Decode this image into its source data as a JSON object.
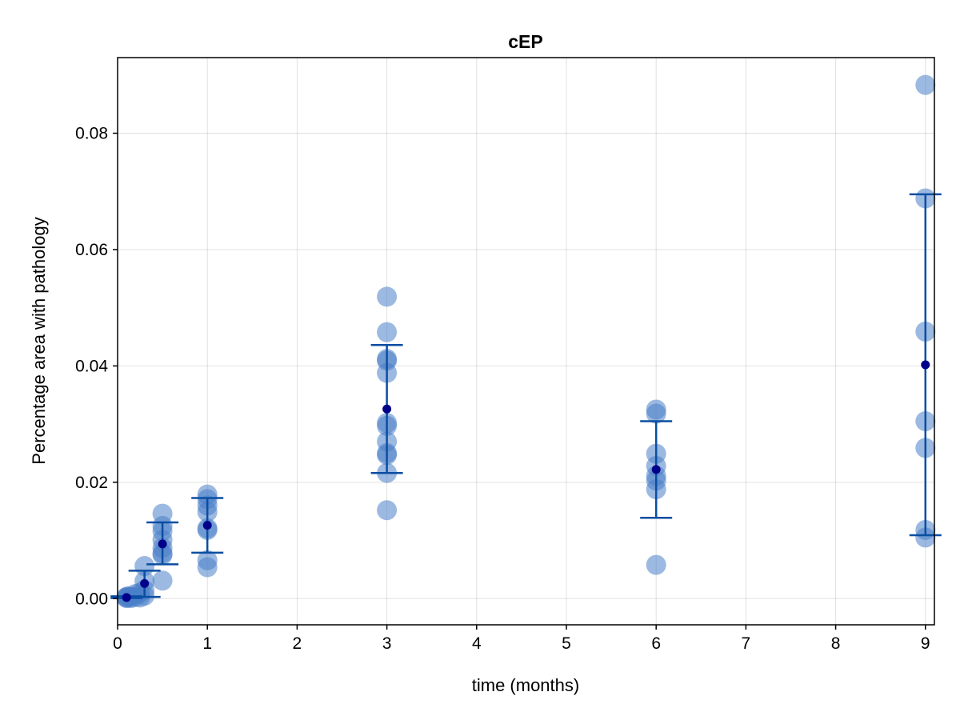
{
  "chart_data": {
    "type": "scatter",
    "title": "cEP",
    "xlabel": "time (months)",
    "ylabel": "Percentage area with pathology",
    "xlim": [
      0,
      9.1
    ],
    "ylim": [
      -0.0045,
      0.093
    ],
    "xticks": [
      0,
      1,
      2,
      3,
      4,
      5,
      6,
      7,
      8,
      9
    ],
    "xtick_labels": [
      "0",
      "1",
      "2",
      "3",
      "4",
      "5",
      "6",
      "7",
      "8",
      "9"
    ],
    "yticks": [
      0.0,
      0.02,
      0.04,
      0.06,
      0.08
    ],
    "ytick_labels": [
      "0.00",
      "0.02",
      "0.04",
      "0.06",
      "0.08"
    ],
    "grid": true,
    "colors": {
      "points": "#4a7fc9",
      "mean": "#00008b",
      "errorbar": "#0b4ea2"
    },
    "points": [
      {
        "x": 0.1,
        "y": 0.0002
      },
      {
        "x": 0.1,
        "y": 0.0001
      },
      {
        "x": 0.1,
        "y": 0.0003
      },
      {
        "x": 0.12,
        "y": 0.0004
      },
      {
        "x": 0.15,
        "y": 0.0001
      },
      {
        "x": 0.15,
        "y": 0.0003
      },
      {
        "x": 0.2,
        "y": 0.0008
      },
      {
        "x": 0.2,
        "y": 0.0003
      },
      {
        "x": 0.25,
        "y": 0.0002
      },
      {
        "x": 0.3,
        "y": 0.0056
      },
      {
        "x": 0.3,
        "y": 0.003
      },
      {
        "x": 0.3,
        "y": 0.0015
      },
      {
        "x": 0.3,
        "y": 0.0005
      },
      {
        "x": 0.25,
        "y": 0.001
      },
      {
        "x": 0.5,
        "y": 0.0146
      },
      {
        "x": 0.5,
        "y": 0.0125
      },
      {
        "x": 0.5,
        "y": 0.0116
      },
      {
        "x": 0.5,
        "y": 0.0101
      },
      {
        "x": 0.5,
        "y": 0.0087
      },
      {
        "x": 0.5,
        "y": 0.0078
      },
      {
        "x": 0.5,
        "y": 0.0075
      },
      {
        "x": 0.5,
        "y": 0.0031
      },
      {
        "x": 1,
        "y": 0.0179
      },
      {
        "x": 1,
        "y": 0.0171
      },
      {
        "x": 1,
        "y": 0.016
      },
      {
        "x": 1,
        "y": 0.0149
      },
      {
        "x": 1,
        "y": 0.0121
      },
      {
        "x": 1,
        "y": 0.0118
      },
      {
        "x": 1,
        "y": 0.0066
      },
      {
        "x": 1,
        "y": 0.0054
      },
      {
        "x": 3,
        "y": 0.0519
      },
      {
        "x": 3,
        "y": 0.0458
      },
      {
        "x": 3,
        "y": 0.0412
      },
      {
        "x": 3,
        "y": 0.0409
      },
      {
        "x": 3,
        "y": 0.0388
      },
      {
        "x": 3,
        "y": 0.0302
      },
      {
        "x": 3,
        "y": 0.0297
      },
      {
        "x": 3,
        "y": 0.027
      },
      {
        "x": 3,
        "y": 0.025
      },
      {
        "x": 3,
        "y": 0.0247
      },
      {
        "x": 3,
        "y": 0.0216
      },
      {
        "x": 3,
        "y": 0.0152
      },
      {
        "x": 6,
        "y": 0.0325
      },
      {
        "x": 6,
        "y": 0.0318
      },
      {
        "x": 6,
        "y": 0.0249
      },
      {
        "x": 6,
        "y": 0.0228
      },
      {
        "x": 6,
        "y": 0.0211
      },
      {
        "x": 6,
        "y": 0.0203
      },
      {
        "x": 6,
        "y": 0.0188
      },
      {
        "x": 6,
        "y": 0.0058
      },
      {
        "x": 9,
        "y": 0.0883
      },
      {
        "x": 9,
        "y": 0.0688
      },
      {
        "x": 9,
        "y": 0.0459
      },
      {
        "x": 9,
        "y": 0.0305
      },
      {
        "x": 9,
        "y": 0.0259
      },
      {
        "x": 9,
        "y": 0.0118
      },
      {
        "x": 9,
        "y": 0.0105
      }
    ],
    "means": [
      {
        "x": 0.1,
        "y": 0.0002,
        "lower": 0.0001,
        "upper": 0.0004
      },
      {
        "x": 0.3,
        "y": 0.0026,
        "lower": 0.0003,
        "upper": 0.0048
      },
      {
        "x": 0.5,
        "y": 0.0094,
        "lower": 0.0059,
        "upper": 0.0131
      },
      {
        "x": 1,
        "y": 0.0126,
        "lower": 0.0079,
        "upper": 0.0173
      },
      {
        "x": 3,
        "y": 0.0326,
        "lower": 0.0216,
        "upper": 0.0436
      },
      {
        "x": 6,
        "y": 0.0222,
        "lower": 0.0139,
        "upper": 0.0305
      },
      {
        "x": 9,
        "y": 0.0402,
        "lower": 0.0109,
        "upper": 0.0695
      }
    ]
  }
}
